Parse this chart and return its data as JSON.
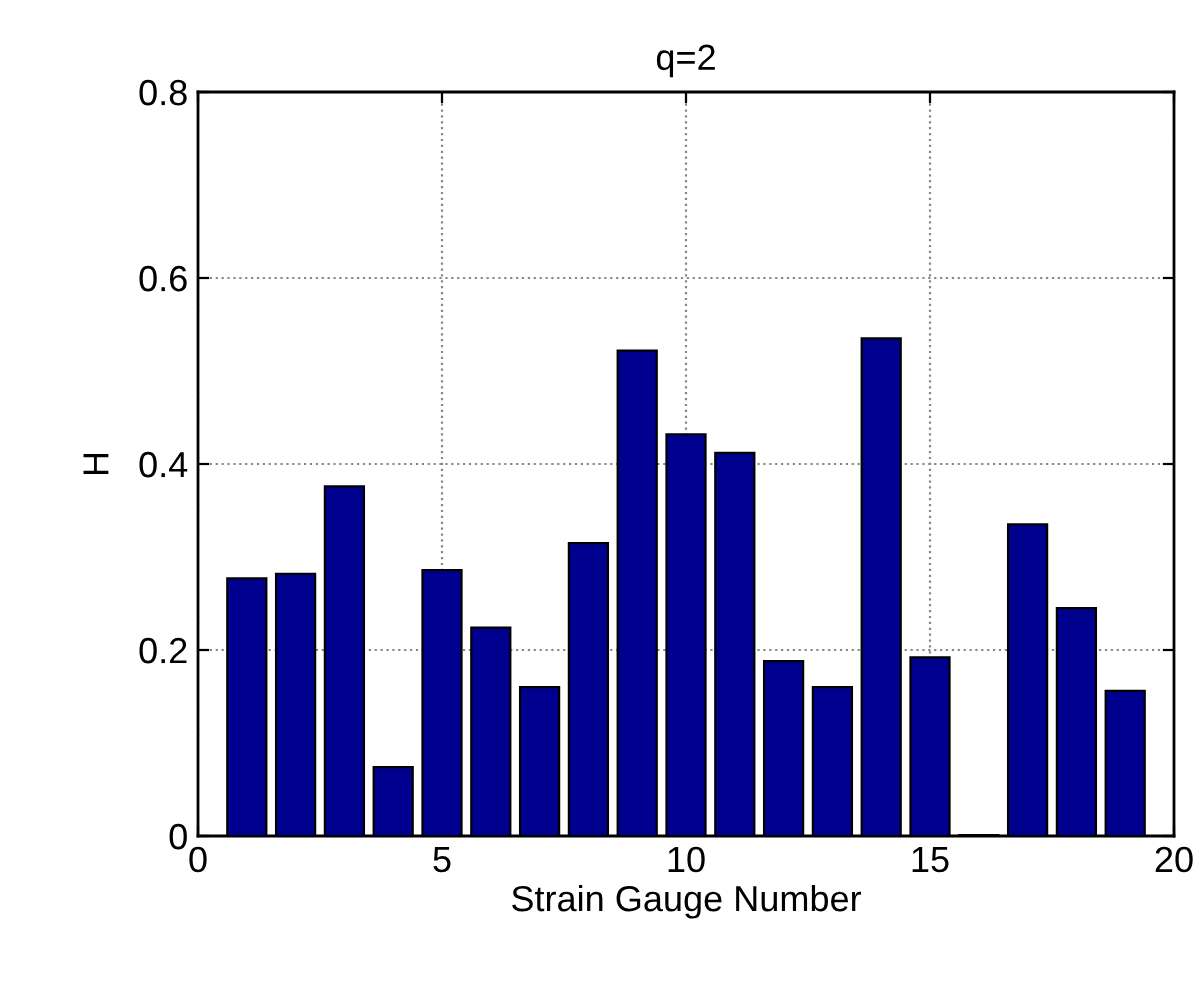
{
  "chart_data": {
    "type": "bar",
    "title": "q=2",
    "xlabel": "Strain Gauge Number",
    "ylabel": "H",
    "x": [
      1,
      2,
      3,
      4,
      5,
      6,
      7,
      8,
      9,
      10,
      11,
      12,
      13,
      14,
      15,
      16,
      17,
      18,
      19
    ],
    "values": [
      0.277,
      0.282,
      0.376,
      0.074,
      0.286,
      0.224,
      0.16,
      0.315,
      0.522,
      0.432,
      0.412,
      0.188,
      0.16,
      0.535,
      0.192,
      0.001,
      0.335,
      0.245,
      0.156
    ],
    "color": "#00008f",
    "xlim": [
      0,
      20
    ],
    "xticks": [
      0,
      5,
      10,
      15,
      20
    ],
    "ylim": [
      0,
      0.8
    ],
    "yticks": [
      0,
      0.2,
      0.4,
      0.6,
      0.8
    ],
    "grid": true
  }
}
